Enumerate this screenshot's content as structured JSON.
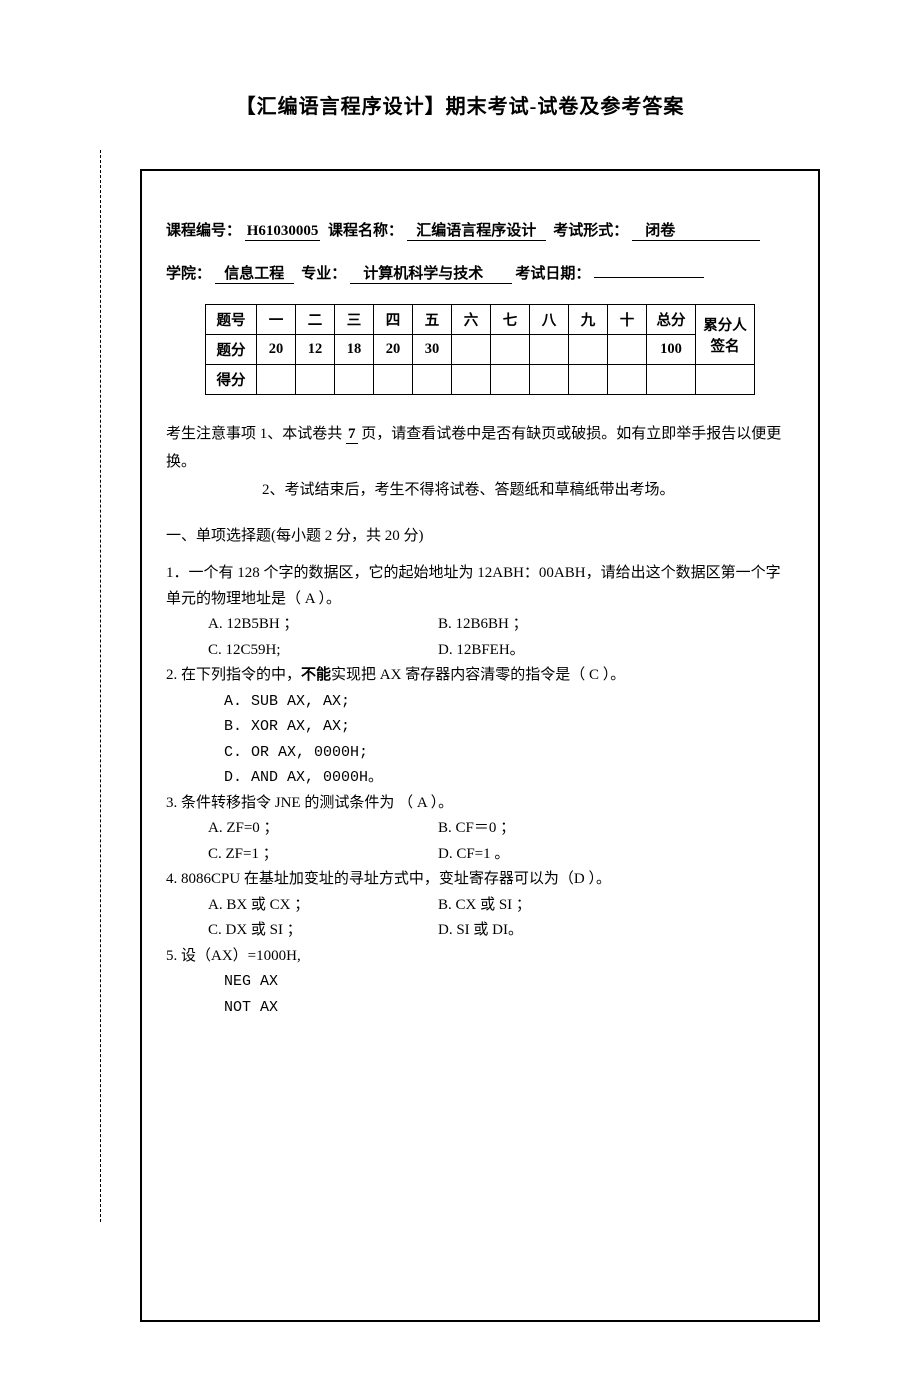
{
  "title": "【汇编语言程序设计】期末考试-试卷及参考答案",
  "meta": {
    "course_no_label": "课程编号：",
    "course_no": "H61030005",
    "course_name_label": "课程名称：",
    "course_name": "汇编语言程序设计",
    "exam_form_label": "考试形式：",
    "exam_form": "闭卷",
    "college_label": "学院：",
    "college": "信息工程",
    "major_label": "专业：",
    "major": "计算机科学与技术",
    "exam_date_label": "考试日期："
  },
  "score_table": {
    "row1_label": "题号",
    "cols": [
      "一",
      "二",
      "三",
      "四",
      "五",
      "六",
      "七",
      "八",
      "九",
      "十"
    ],
    "total_label": "总分",
    "sign_label_1": "累分人",
    "row2_label": "题分",
    "scores": [
      "20",
      "12",
      "18",
      "20",
      "30",
      "",
      "",
      "",
      "",
      ""
    ],
    "total_value": "100",
    "sign_label_2": "签名",
    "row3_label": "得分"
  },
  "notice": {
    "prefix": "考生注意事项",
    "line1": "1、本试卷共",
    "page_count": "7",
    "line1b": "页，请查看试卷中是否有缺页或破损。如有立即举手报告以便更换。",
    "line2": "2、考试结束后，考生不得将试卷、答题纸和草稿纸带出考场。"
  },
  "section1_title": "一、单项选择题(每小题 2 分，共 20 分)",
  "q1": {
    "stem": "1．一个有 128 个字的数据区，它的起始地址为 12ABH：00ABH，请给出这个数据区第一个字单元的物理地址是（   A   ）。",
    "a": "A. 12B5BH ；",
    "b": "B. 12B6BH ；",
    "c": "C. 12C59H;",
    "d": "D. 12BFEH。"
  },
  "q2": {
    "stem_a": "2. 在下列指令的中，",
    "stem_bold": "不能",
    "stem_b": "实现把 AX 寄存器内容清零的指令是（   C   ）。",
    "a": "A. SUB  AX, AX;",
    "b": "B. XOR  AX, AX;",
    "c": "C. OR   AX, 0000H;",
    "d": "D. AND  AX, 0000H。"
  },
  "q3": {
    "stem": "3. 条件转移指令 JNE 的测试条件为   （ A    ）。",
    "a": "A. ZF=0 ；",
    "b": "B. CF＝0 ；",
    "c": "C. ZF=1 ；",
    "d": "D. CF=1 。"
  },
  "q4": {
    "stem": "4. 8086CPU 在基址加变址的寻址方式中，变址寄存器可以为（D    ）。",
    "a": "A. BX 或 CX ；",
    "b": "B. CX 或 SI ；",
    "c": "C. DX 或 SI ；",
    "d": "D. SI 或 DI。"
  },
  "q5": {
    "stem": "5. 设（AX）=1000H,",
    "l1": "NEG  AX",
    "l2": "NOT  AX"
  }
}
